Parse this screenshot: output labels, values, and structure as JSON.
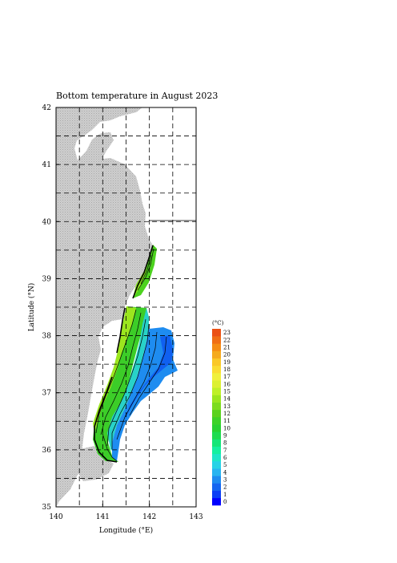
{
  "title": "Bottom temperature in August 2023",
  "x_axis": {
    "label": "Longitude (°E)",
    "ticks": [
      "140",
      "141",
      "142",
      "143"
    ],
    "range": [
      140,
      143
    ]
  },
  "y_axis": {
    "label": "Latitude (°N)",
    "ticks": [
      "35",
      "36",
      "37",
      "38",
      "39",
      "40",
      "41",
      "42"
    ],
    "range": [
      35,
      42
    ]
  },
  "grid": "dashed, every 0.5 degree",
  "land_color": "#c8c8c8",
  "colorbar": {
    "unit": "(°C)",
    "labels": [
      "0",
      "1",
      "2",
      "3",
      "4",
      "5",
      "6",
      "7",
      "8",
      "9",
      "10",
      "11",
      "12",
      "13",
      "14",
      "15",
      "16",
      "17",
      "18",
      "19",
      "20",
      "21",
      "22",
      "23"
    ],
    "colors": [
      "#0000ff",
      "#0a3ef5",
      "#1466f0",
      "#1e8cf0",
      "#28b4f0",
      "#28d2e6",
      "#1ee6c8",
      "#14f0a0",
      "#14e678",
      "#1edc50",
      "#28d232",
      "#3cd228",
      "#5ad21e",
      "#7ddc1e",
      "#9be61e",
      "#bef028",
      "#dcf032",
      "#f0f03c",
      "#fadc32",
      "#fac828",
      "#f5aa1e",
      "#f58c14",
      "#f06e14",
      "#eb5014"
    ]
  }
}
